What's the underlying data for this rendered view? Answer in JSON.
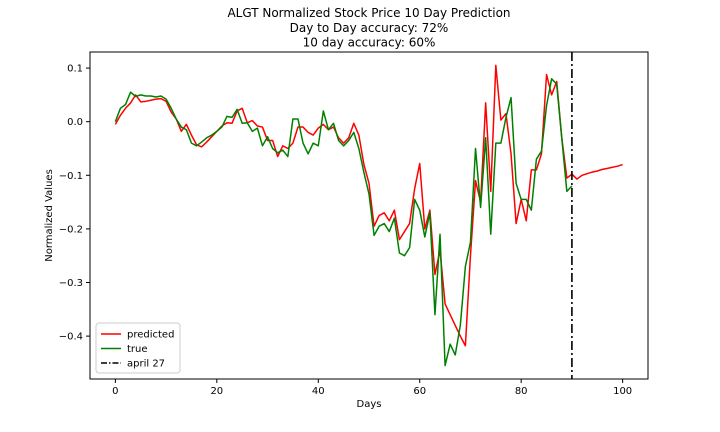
{
  "chart_data": {
    "type": "line",
    "title": "ALGT Normalized Stock Price 10 Day Prediction",
    "subtitle_lines": [
      "Day to Day accuracy: 72%",
      "10 day accuracy: 60%"
    ],
    "xlabel": "Days",
    "ylabel": "Normalized Values",
    "xlim": [
      -5,
      105
    ],
    "ylim": [
      -0.48,
      0.13
    ],
    "xticks": [
      0,
      20,
      40,
      60,
      80,
      100
    ],
    "yticks": [
      -0.4,
      -0.3,
      -0.2,
      -0.1,
      0.0,
      0.1
    ],
    "xtick_labels": [
      "0",
      "20",
      "40",
      "60",
      "80",
      "100"
    ],
    "ytick_labels": [
      "−0.4",
      "−0.3",
      "−0.2",
      "−0.1",
      "0.0",
      "0.1"
    ],
    "grid": false,
    "legend_position": "lower-left",
    "series": [
      {
        "name": "predicted",
        "color": "#ff0000",
        "style": "solid",
        "x": [
          0,
          1,
          2,
          3,
          4,
          5,
          6,
          7,
          8,
          9,
          10,
          11,
          12,
          13,
          14,
          15,
          16,
          17,
          18,
          19,
          20,
          21,
          22,
          23,
          24,
          25,
          26,
          27,
          28,
          29,
          30,
          31,
          32,
          33,
          34,
          35,
          36,
          37,
          38,
          39,
          40,
          41,
          42,
          43,
          44,
          45,
          46,
          47,
          48,
          49,
          50,
          51,
          52,
          53,
          54,
          55,
          56,
          57,
          58,
          59,
          60,
          61,
          62,
          63,
          64,
          65,
          66,
          67,
          68,
          69,
          70,
          71,
          72,
          73,
          74,
          75,
          76,
          77,
          78,
          79,
          80,
          81,
          82,
          83,
          84,
          85,
          86,
          87,
          88,
          89,
          90,
          91,
          92,
          93,
          94,
          95,
          96,
          97,
          98,
          99,
          100
        ],
        "y": [
          -0.005,
          0.012,
          0.025,
          0.035,
          0.05,
          0.037,
          0.038,
          0.04,
          0.042,
          0.043,
          0.038,
          0.018,
          0.005,
          -0.018,
          -0.005,
          -0.025,
          -0.043,
          -0.047,
          -0.038,
          -0.028,
          -0.018,
          -0.008,
          -0.002,
          -0.003,
          0.02,
          0.025,
          -0.002,
          0.002,
          -0.008,
          -0.01,
          -0.035,
          -0.035,
          -0.065,
          -0.045,
          -0.05,
          -0.04,
          -0.01,
          -0.01,
          -0.02,
          -0.025,
          -0.012,
          -0.005,
          -0.015,
          -0.01,
          -0.03,
          -0.04,
          -0.03,
          -0.003,
          -0.025,
          -0.08,
          -0.115,
          -0.195,
          -0.175,
          -0.17,
          -0.185,
          -0.165,
          -0.22,
          -0.205,
          -0.19,
          -0.125,
          -0.078,
          -0.2,
          -0.165,
          -0.285,
          -0.24,
          -0.34,
          -0.36,
          -0.38,
          -0.4,
          -0.418,
          -0.25,
          -0.11,
          -0.15,
          0.035,
          -0.13,
          0.105,
          0.003,
          0.015,
          -0.06,
          -0.19,
          -0.145,
          -0.185,
          -0.09,
          -0.09,
          -0.06,
          0.088,
          0.05,
          0.075,
          -0.03,
          -0.105,
          -0.098,
          -0.107,
          -0.1,
          -0.097,
          -0.094,
          -0.092,
          -0.089,
          -0.087,
          -0.085,
          -0.083,
          -0.08
        ]
      },
      {
        "name": "true",
        "color": "#008000",
        "style": "solid",
        "x": [
          0,
          1,
          2,
          3,
          4,
          5,
          6,
          7,
          8,
          9,
          10,
          11,
          12,
          13,
          14,
          15,
          16,
          17,
          18,
          19,
          20,
          21,
          22,
          23,
          24,
          25,
          26,
          27,
          28,
          29,
          30,
          31,
          32,
          33,
          34,
          35,
          36,
          37,
          38,
          39,
          40,
          41,
          42,
          43,
          44,
          45,
          46,
          47,
          48,
          49,
          50,
          51,
          52,
          53,
          54,
          55,
          56,
          57,
          58,
          59,
          60,
          61,
          62,
          63,
          64,
          65,
          66,
          67,
          68,
          69,
          70,
          71,
          72,
          73,
          74,
          75,
          76,
          77,
          78,
          79,
          80,
          81,
          82,
          83,
          84,
          85,
          86,
          87,
          88,
          89,
          90
        ],
        "y": [
          0,
          0.025,
          0.032,
          0.055,
          0.047,
          0.05,
          0.048,
          0.048,
          0.046,
          0.048,
          0.042,
          0.025,
          0.005,
          -0.01,
          -0.015,
          -0.04,
          -0.045,
          -0.038,
          -0.03,
          -0.025,
          -0.018,
          -0.01,
          0.01,
          0.008,
          0.023,
          -0.003,
          -0.002,
          -0.018,
          -0.012,
          -0.045,
          -0.028,
          -0.05,
          -0.058,
          -0.053,
          -0.065,
          0.005,
          0.005,
          -0.04,
          -0.06,
          -0.04,
          -0.045,
          0.02,
          -0.015,
          -0.003,
          -0.035,
          -0.045,
          -0.035,
          -0.02,
          -0.05,
          -0.095,
          -0.135,
          -0.212,
          -0.195,
          -0.19,
          -0.205,
          -0.18,
          -0.245,
          -0.25,
          -0.235,
          -0.145,
          -0.165,
          -0.215,
          -0.17,
          -0.36,
          -0.21,
          -0.455,
          -0.415,
          -0.435,
          -0.38,
          -0.27,
          -0.225,
          -0.05,
          -0.16,
          -0.03,
          -0.21,
          -0.04,
          -0.04,
          0.008,
          0.045,
          -0.115,
          -0.145,
          -0.145,
          -0.165,
          -0.07,
          -0.055,
          0.03,
          0.08,
          0.07,
          -0.03,
          -0.13,
          -0.12
        ]
      }
    ],
    "vline": {
      "x": 90,
      "label": "april 27",
      "color": "#000000",
      "style": "dash-dot"
    }
  }
}
